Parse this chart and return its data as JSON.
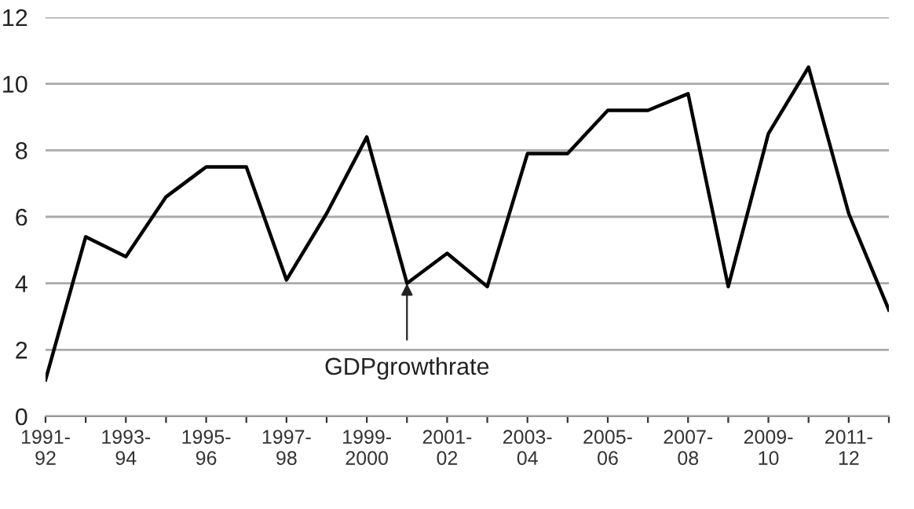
{
  "chart_data": {
    "type": "line",
    "categories": [
      "1991-\n92",
      null,
      "1993-\n94",
      null,
      "1995-\n96",
      null,
      "1997-\n98",
      null,
      "1999-\n2000",
      null,
      "2001-\n02",
      null,
      "2003-\n04",
      null,
      "2005-\n06",
      null,
      "2007-\n08",
      null,
      "2009-\n10",
      null,
      "2011-\n12",
      null
    ],
    "series": [
      {
        "color": "#000000",
        "values": [
          1.1,
          5.4,
          4.8,
          6.6,
          7.5,
          7.5,
          4.1,
          6.1,
          8.4,
          4.0,
          4.9,
          3.9,
          7.9,
          7.9,
          9.2,
          9.2,
          9.7,
          3.9,
          8.5,
          10.5,
          6.1,
          3.2
        ]
      }
    ],
    "ylim": [
      0,
      12
    ],
    "yticks": [
      0,
      2,
      4,
      6,
      8,
      10,
      12
    ],
    "grid": "y",
    "legend": false,
    "marker": "none",
    "line_style": "solid",
    "annotations": [
      {
        "text": "GDPgrowthrate",
        "y": 4.0
      }
    ]
  }
}
